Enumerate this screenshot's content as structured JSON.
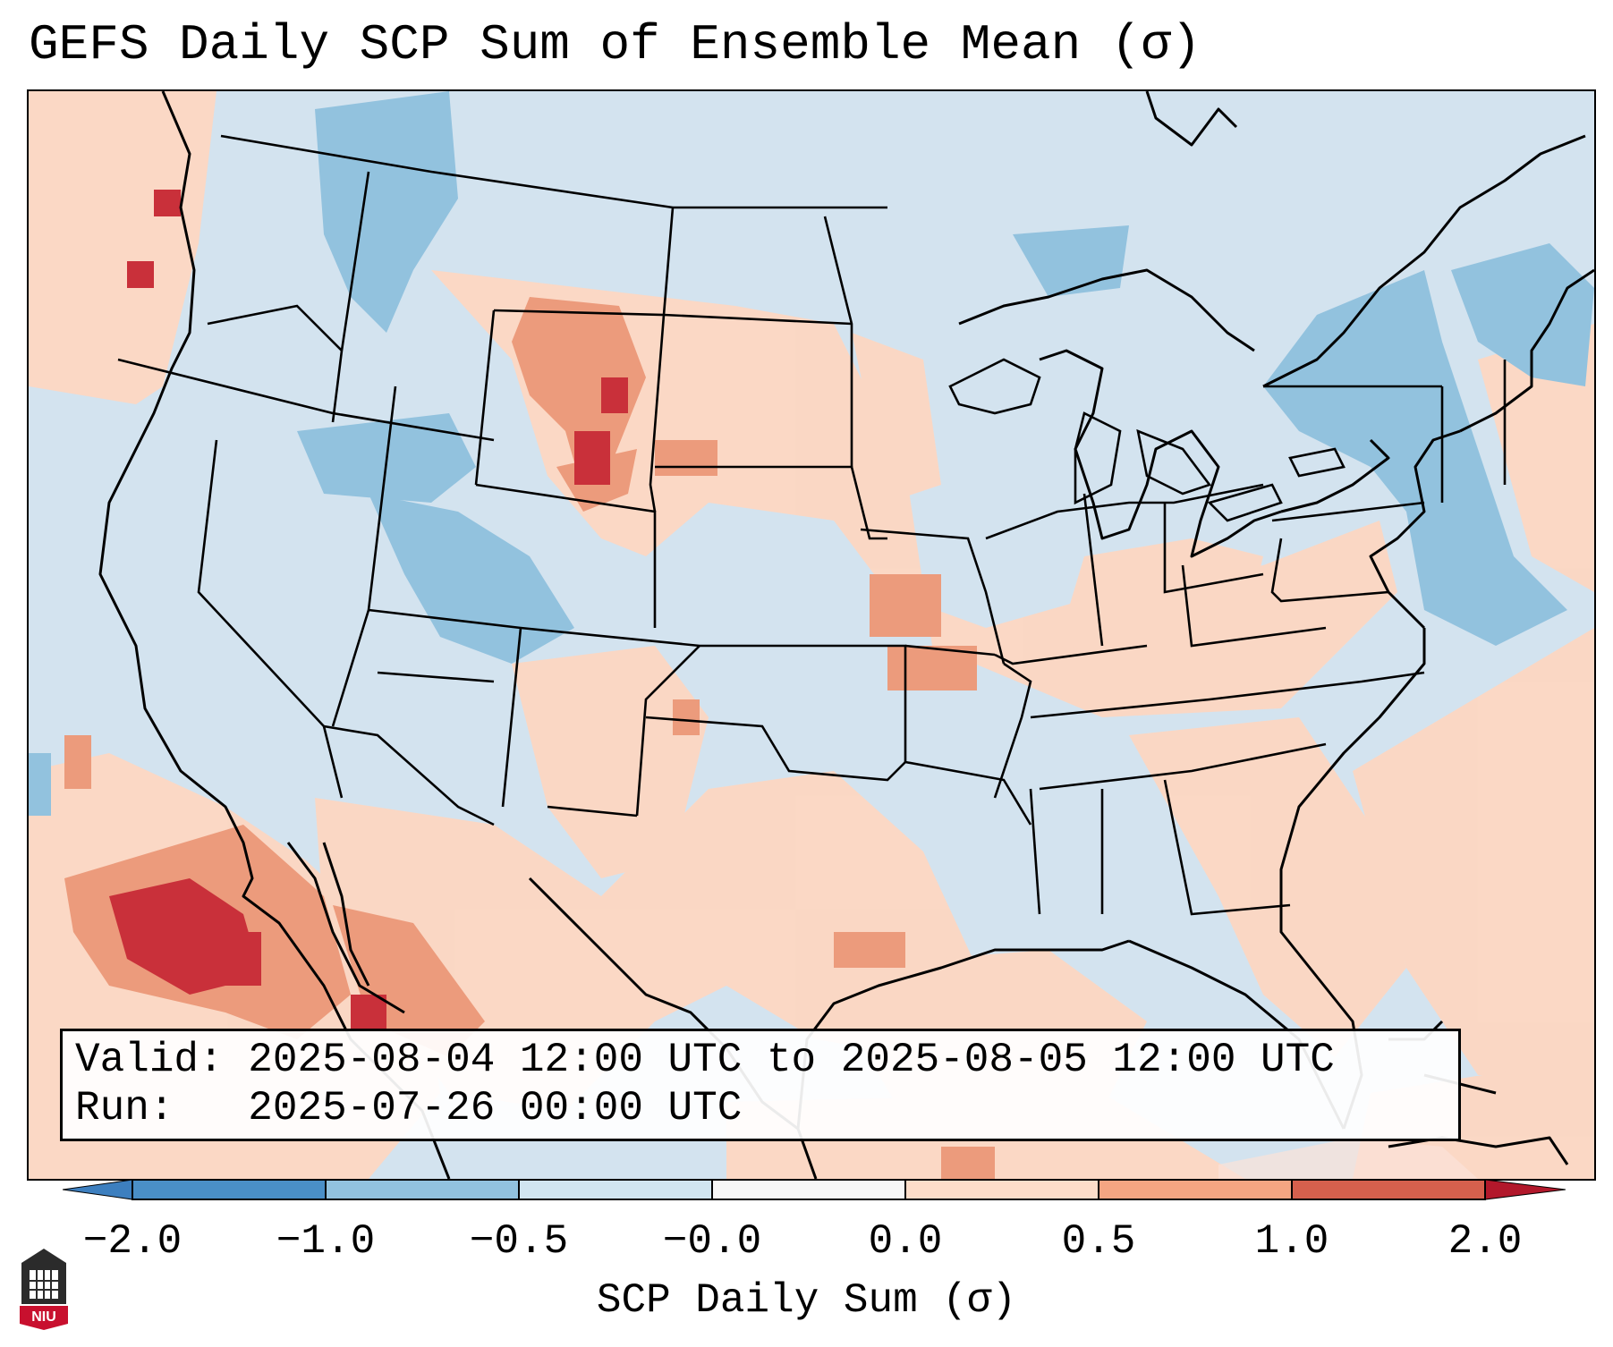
{
  "title": "GEFS Daily SCP Sum of Ensemble Mean (σ)",
  "info": {
    "valid_prefix": "Valid:",
    "valid_text": "2025-08-04 12:00 UTC to 2025-08-05 12:00 UTC",
    "run_prefix": "Run:",
    "run_text": "2025-07-26 00:00 UTC"
  },
  "colorbar": {
    "label": "SCP Daily Sum (σ)",
    "ticks": [
      "−2.0",
      "−1.0",
      "−0.5",
      "−0.0",
      "0.0",
      "0.5",
      "1.0",
      "2.0"
    ],
    "colors": [
      "#4a8fc7",
      "#92c2de",
      "#d1e5f0",
      "#f7f7f7",
      "#fdddc9",
      "#f4a582",
      "#d6604d",
      "#b2182b"
    ]
  },
  "logo": {
    "text": "NIU"
  }
}
